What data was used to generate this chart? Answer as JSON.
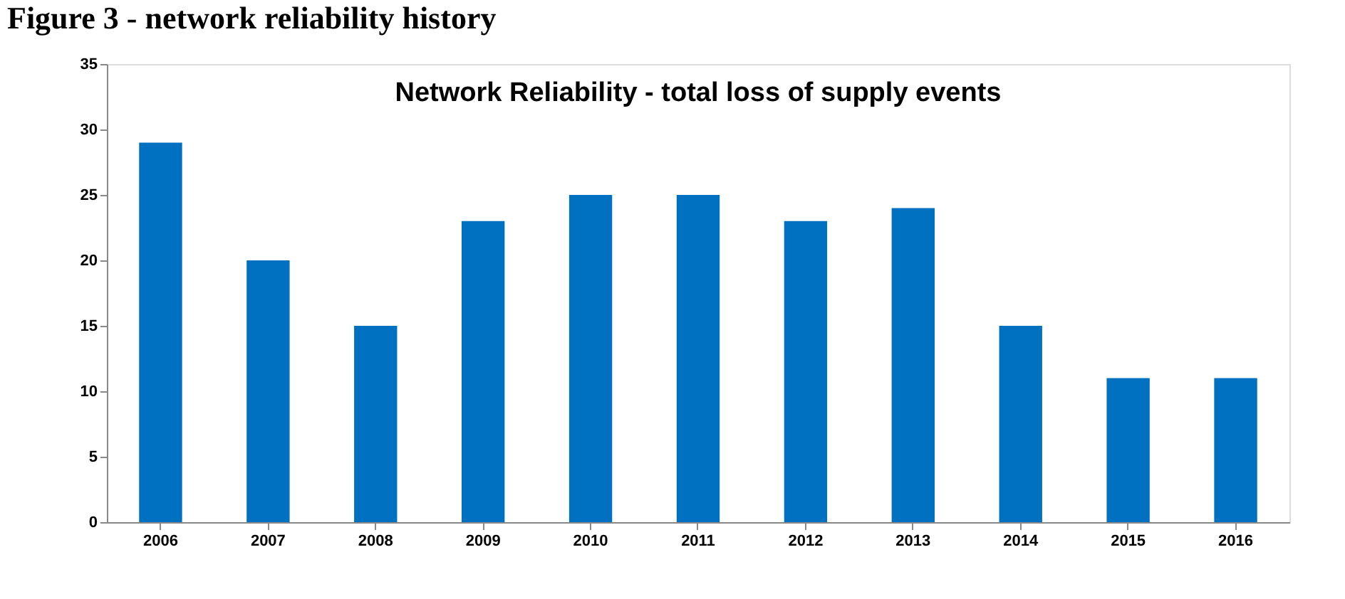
{
  "chart_data": {
    "type": "bar",
    "title": "Network Reliability - total loss of supply events",
    "categories": [
      "2006",
      "2007",
      "2008",
      "2009",
      "2010",
      "2011",
      "2012",
      "2013",
      "2014",
      "2015",
      "2016"
    ],
    "values": [
      29,
      20,
      15,
      23,
      25,
      25,
      23,
      24,
      15,
      11,
      11
    ],
    "color": "#0070c0",
    "ylim": [
      0,
      35
    ],
    "yticks": [
      0,
      5,
      10,
      15,
      20,
      25,
      30,
      35
    ],
    "grid": false,
    "annotations": [
      "Figure 3 - network reliability history"
    ]
  }
}
